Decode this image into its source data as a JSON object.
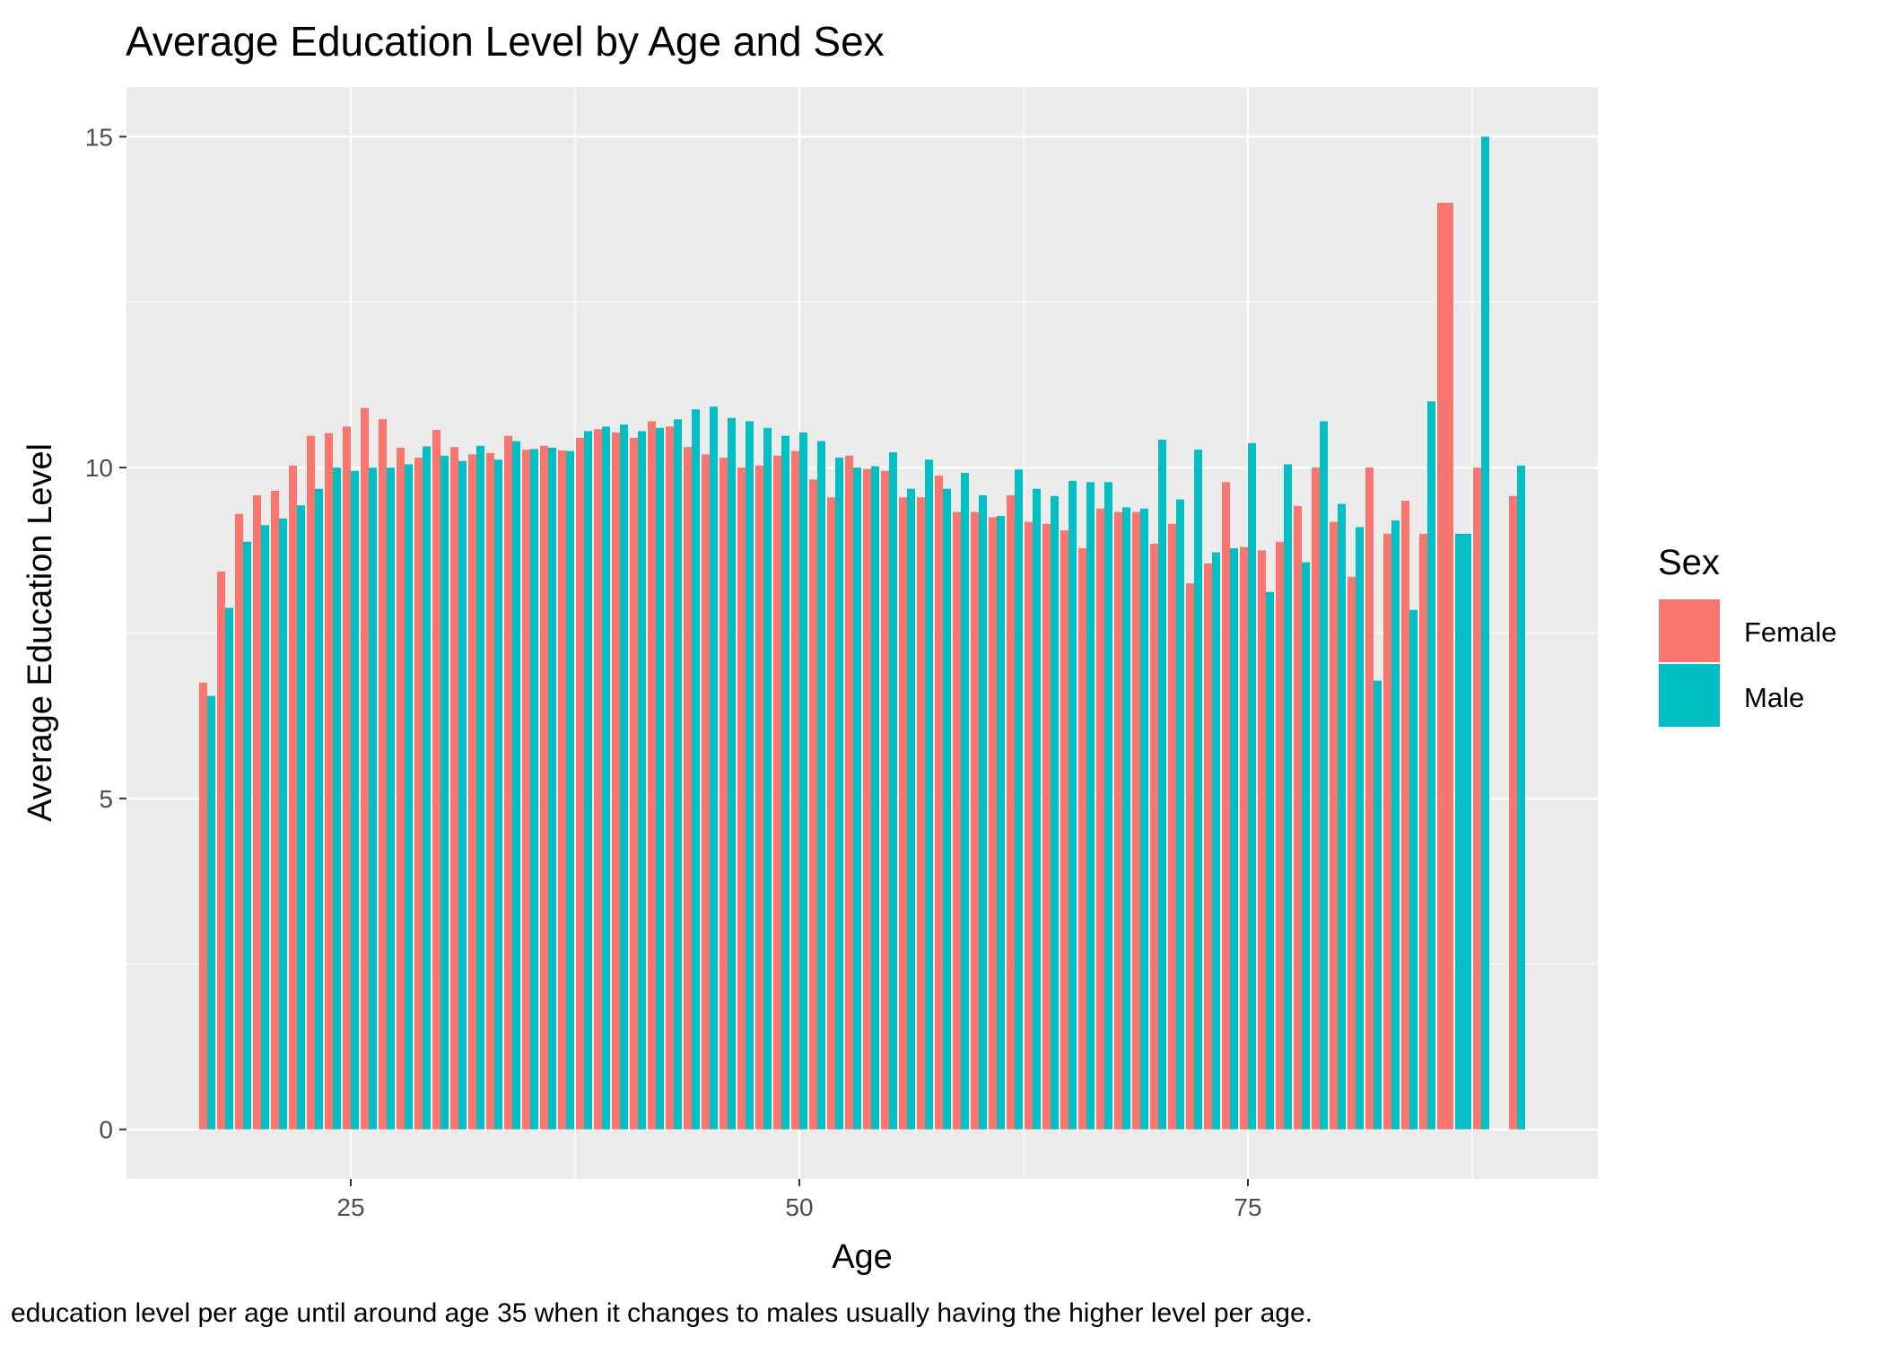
{
  "chart_data": {
    "type": "bar",
    "title": "Average Education Level by Age and Sex",
    "xlabel": "Age",
    "ylabel": "Average Education Level",
    "xlim": [
      12.5,
      94.5
    ],
    "ylim": [
      -0.75,
      15.75
    ],
    "x_ticks": [
      25,
      50,
      75
    ],
    "y_ticks": [
      0,
      5,
      10,
      15
    ],
    "grid": true,
    "legend": {
      "title": "Sex",
      "position": "right"
    },
    "caption": "education level per age until around age 35 when it changes to males usually having the higher level per age.",
    "series": [
      {
        "name": "Female",
        "color": "#F8766D",
        "points": [
          [
            17,
            6.75
          ],
          [
            18,
            8.43
          ],
          [
            19,
            9.3
          ],
          [
            20,
            9.58
          ],
          [
            21,
            9.65
          ],
          [
            22,
            10.03
          ],
          [
            23,
            10.48
          ],
          [
            24,
            10.52
          ],
          [
            25,
            10.62
          ],
          [
            26,
            10.9
          ],
          [
            27,
            10.73
          ],
          [
            28,
            10.3
          ],
          [
            29,
            10.15
          ],
          [
            30,
            10.57
          ],
          [
            31,
            10.31
          ],
          [
            32,
            10.2
          ],
          [
            33,
            10.22
          ],
          [
            34,
            10.48
          ],
          [
            35,
            10.27
          ],
          [
            36,
            10.33
          ],
          [
            37,
            10.26
          ],
          [
            38,
            10.45
          ],
          [
            39,
            10.58
          ],
          [
            40,
            10.53
          ],
          [
            41,
            10.45
          ],
          [
            42,
            10.7
          ],
          [
            43,
            10.62
          ],
          [
            44,
            10.31
          ],
          [
            45,
            10.2
          ],
          [
            46,
            10.15
          ],
          [
            47,
            10.0
          ],
          [
            48,
            10.03
          ],
          [
            49,
            10.18
          ],
          [
            50,
            10.25
          ],
          [
            51,
            9.82
          ],
          [
            52,
            9.55
          ],
          [
            53,
            10.18
          ],
          [
            54,
            9.98
          ],
          [
            55,
            9.95
          ],
          [
            56,
            9.55
          ],
          [
            57,
            9.55
          ],
          [
            58,
            9.88
          ],
          [
            59,
            9.33
          ],
          [
            60,
            9.33
          ],
          [
            61,
            9.25
          ],
          [
            62,
            9.58
          ],
          [
            63,
            9.18
          ],
          [
            64,
            9.15
          ],
          [
            65,
            9.05
          ],
          [
            66,
            8.78
          ],
          [
            67,
            9.38
          ],
          [
            68,
            9.33
          ],
          [
            69,
            9.33
          ],
          [
            70,
            8.85
          ],
          [
            71,
            9.15
          ],
          [
            72,
            8.25
          ],
          [
            73,
            8.55
          ],
          [
            74,
            9.78
          ],
          [
            75,
            8.8
          ],
          [
            76,
            8.75
          ],
          [
            77,
            8.88
          ],
          [
            78,
            9.42
          ],
          [
            79,
            10.0
          ],
          [
            80,
            9.18
          ],
          [
            81,
            8.35
          ],
          [
            82,
            10.0
          ],
          [
            83,
            9.0
          ],
          [
            84,
            9.5
          ],
          [
            85,
            9.0
          ],
          [
            86,
            14.0
          ],
          [
            88,
            10.0
          ],
          [
            90,
            9.57
          ]
        ]
      },
      {
        "name": "Male",
        "color": "#00BFC4",
        "points": [
          [
            17,
            6.55
          ],
          [
            18,
            7.88
          ],
          [
            19,
            8.88
          ],
          [
            20,
            9.13
          ],
          [
            21,
            9.23
          ],
          [
            22,
            9.43
          ],
          [
            23,
            9.68
          ],
          [
            24,
            10.0
          ],
          [
            25,
            9.95
          ],
          [
            26,
            10.0
          ],
          [
            27,
            10.0
          ],
          [
            28,
            10.05
          ],
          [
            29,
            10.32
          ],
          [
            30,
            10.18
          ],
          [
            31,
            10.1
          ],
          [
            32,
            10.33
          ],
          [
            33,
            10.12
          ],
          [
            34,
            10.4
          ],
          [
            35,
            10.28
          ],
          [
            36,
            10.3
          ],
          [
            37,
            10.25
          ],
          [
            38,
            10.55
          ],
          [
            39,
            10.62
          ],
          [
            40,
            10.65
          ],
          [
            41,
            10.55
          ],
          [
            42,
            10.6
          ],
          [
            43,
            10.73
          ],
          [
            44,
            10.88
          ],
          [
            45,
            10.92
          ],
          [
            46,
            10.75
          ],
          [
            47,
            10.7
          ],
          [
            48,
            10.6
          ],
          [
            49,
            10.48
          ],
          [
            50,
            10.53
          ],
          [
            51,
            10.4
          ],
          [
            52,
            10.15
          ],
          [
            53,
            10.0
          ],
          [
            54,
            10.02
          ],
          [
            55,
            10.23
          ],
          [
            56,
            9.68
          ],
          [
            57,
            10.12
          ],
          [
            58,
            9.68
          ],
          [
            59,
            9.92
          ],
          [
            60,
            9.58
          ],
          [
            61,
            9.27
          ],
          [
            62,
            9.97
          ],
          [
            63,
            9.68
          ],
          [
            64,
            9.57
          ],
          [
            65,
            9.8
          ],
          [
            66,
            9.78
          ],
          [
            67,
            9.78
          ],
          [
            68,
            9.4
          ],
          [
            69,
            9.38
          ],
          [
            70,
            10.42
          ],
          [
            71,
            9.52
          ],
          [
            72,
            10.27
          ],
          [
            73,
            8.72
          ],
          [
            74,
            8.78
          ],
          [
            75,
            10.37
          ],
          [
            76,
            8.12
          ],
          [
            77,
            10.05
          ],
          [
            78,
            8.57
          ],
          [
            79,
            10.7
          ],
          [
            80,
            9.45
          ],
          [
            81,
            9.1
          ],
          [
            82,
            6.78
          ],
          [
            83,
            9.2
          ],
          [
            84,
            7.85
          ],
          [
            85,
            11.0
          ],
          [
            87,
            9.0
          ],
          [
            88,
            15.0
          ],
          [
            90,
            10.03
          ]
        ]
      }
    ]
  }
}
